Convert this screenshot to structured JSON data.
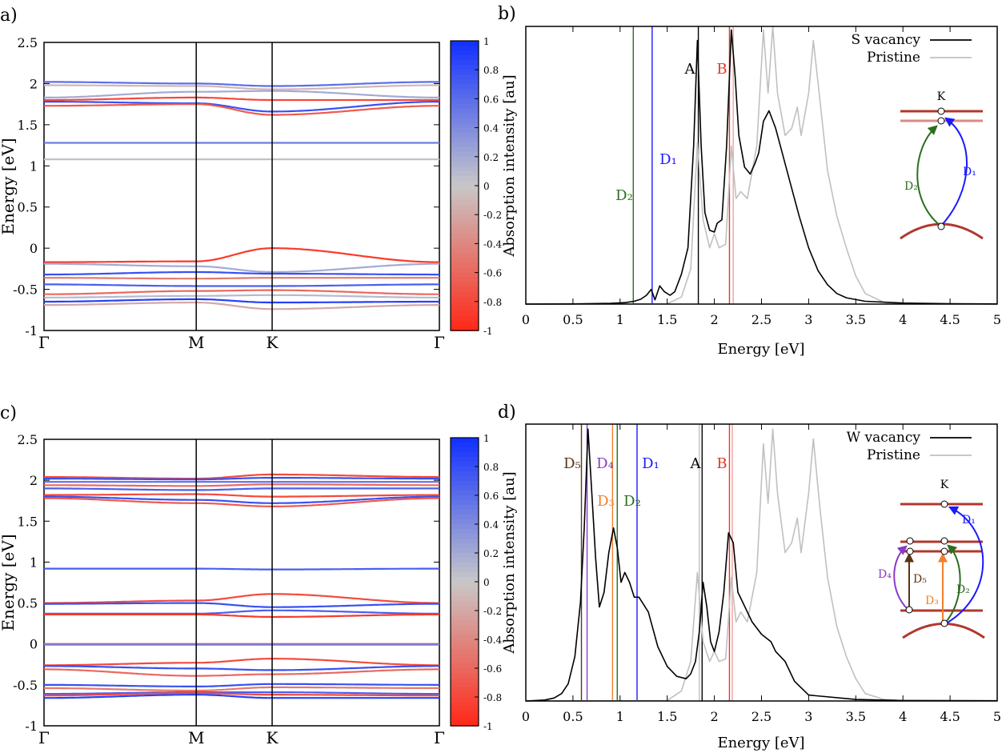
{
  "figure": {
    "colorbar_colors": {
      "neg": "#ff2a1a",
      "mid": "#c8c8c8",
      "pos": "#1432ff"
    },
    "colors": {
      "red_level": "#b0382c",
      "pink_level": "#d98c84",
      "blue": "#1a1aff",
      "green": "#2b6e1e",
      "orange": "#f07f29",
      "purple": "#8a3ac6",
      "brown": "#5b3414",
      "black": "#000000",
      "gray": "#c0c0c0",
      "red_line": "#e03a2a"
    }
  },
  "chart_data": [
    {
      "panel": "a)",
      "type": "band_structure",
      "ylabel": "Energy [eV]",
      "ylim": [
        -1,
        2.5
      ],
      "yticks": [
        "2.5",
        "2",
        "1.5",
        "1",
        "0.5",
        "0",
        "-0.5",
        "-1"
      ],
      "kpoint_labels": [
        "Γ",
        "M",
        "K",
        "Γ"
      ],
      "kpoint_positions": [
        0,
        0.385,
        0.577,
        1
      ],
      "colorbar_ticks": [
        "1",
        "0.8",
        "0.6",
        "0.4",
        "0.2",
        "0",
        "-0.2",
        "-0.4",
        "-0.6",
        "-0.8",
        "-1"
      ],
      "bands": [
        {
          "e_gamma": 2.02,
          "e_m": 2.0,
          "e_k": 1.97,
          "pol": 0.6
        },
        {
          "e_gamma": 1.98,
          "e_m": 1.97,
          "e_k": 1.93,
          "pol": -0.1
        },
        {
          "e_gamma": 1.83,
          "e_m": 1.9,
          "e_k": 1.91,
          "pol": 0.2
        },
        {
          "e_gamma": 1.8,
          "e_m": 1.83,
          "e_k": 1.8,
          "pol": -0.8
        },
        {
          "e_gamma": 1.78,
          "e_m": 1.76,
          "e_k": 1.66,
          "pol": 0.8
        },
        {
          "e_gamma": 1.73,
          "e_m": 1.75,
          "e_k": 1.62,
          "pol": -0.7
        },
        {
          "e_gamma": 1.28,
          "e_m": 1.28,
          "e_k": 1.28,
          "pol": 0.5
        },
        {
          "e_gamma": 1.08,
          "e_m": 1.08,
          "e_k": 1.08,
          "pol": 0.05
        },
        {
          "e_gamma": -0.17,
          "e_m": -0.16,
          "e_k": 0.0,
          "pol": -0.9
        },
        {
          "e_gamma": -0.19,
          "e_m": -0.22,
          "e_k": -0.29,
          "pol": 0.2
        },
        {
          "e_gamma": -0.32,
          "e_m": -0.29,
          "e_k": -0.31,
          "pol": 0.8
        },
        {
          "e_gamma": -0.36,
          "e_m": -0.37,
          "e_k": -0.36,
          "pol": -0.5
        },
        {
          "e_gamma": -0.44,
          "e_m": -0.46,
          "e_k": -0.46,
          "pol": 0.7
        },
        {
          "e_gamma": -0.56,
          "e_m": -0.52,
          "e_k": -0.51,
          "pol": -0.6
        },
        {
          "e_gamma": -0.6,
          "e_m": -0.58,
          "e_k": -0.57,
          "pol": 0.1
        },
        {
          "e_gamma": -0.65,
          "e_m": -0.62,
          "e_k": -0.66,
          "pol": 0.9
        },
        {
          "e_gamma": -0.69,
          "e_m": -0.66,
          "e_k": -0.74,
          "pol": -0.2
        }
      ]
    },
    {
      "panel": "b)",
      "type": "line",
      "xlabel": "Energy [eV]",
      "ylabel": "Absorption intensity [au]",
      "xlim": [
        0,
        5
      ],
      "xticks": [
        "0",
        "0.5",
        "1",
        "1.5",
        "2",
        "2.5",
        "3",
        "3.5",
        "4",
        "4.5",
        "5"
      ],
      "series": [
        {
          "name": "S vacancy",
          "color": "#000000",
          "x": [
            0,
            0.5,
            0.9,
            1.05,
            1.15,
            1.22,
            1.28,
            1.33,
            1.37,
            1.42,
            1.47,
            1.53,
            1.58,
            1.65,
            1.72,
            1.78,
            1.82,
            1.86,
            1.9,
            1.95,
            2.0,
            2.03,
            2.08,
            2.13,
            2.18,
            2.22,
            2.26,
            2.32,
            2.38,
            2.43,
            2.47,
            2.52,
            2.58,
            2.65,
            2.72,
            2.8,
            2.9,
            3.0,
            3.1,
            3.2,
            3.3,
            3.4,
            3.6,
            4.0,
            4.5,
            5.0
          ],
          "y": [
            0,
            0.004,
            0.02,
            0.04,
            0.08,
            0.14,
            0.25,
            0.42,
            0.12,
            0.52,
            0.35,
            0.25,
            0.35,
            0.85,
            1.6,
            4.5,
            7.5,
            4.5,
            2.6,
            2.1,
            2.05,
            2.3,
            2.4,
            4.5,
            7.8,
            6.5,
            4.8,
            3.9,
            3.7,
            4.0,
            4.3,
            5.2,
            5.5,
            5.0,
            4.3,
            3.5,
            2.5,
            1.6,
            0.95,
            0.55,
            0.3,
            0.18,
            0.08,
            0.03,
            0.01,
            0.005
          ]
        },
        {
          "name": "Pristine",
          "color": "#c0c0c0",
          "x": [
            0,
            1.5,
            1.65,
            1.75,
            1.82,
            1.88,
            1.95,
            2.0,
            2.05,
            2.12,
            2.18,
            2.23,
            2.28,
            2.35,
            2.45,
            2.52,
            2.57,
            2.62,
            2.67,
            2.75,
            2.82,
            2.88,
            2.92,
            3.0,
            3.05,
            3.12,
            3.2,
            3.3,
            3.4,
            3.5,
            3.6,
            3.8,
            4.0,
            4.05
          ],
          "y": [
            0,
            0.01,
            0.2,
            1.0,
            4.6,
            2.4,
            1.6,
            2.0,
            1.6,
            1.7,
            4.5,
            3.0,
            3.2,
            3.0,
            4.5,
            7.8,
            6.0,
            7.9,
            6.0,
            4.8,
            5.0,
            5.6,
            4.8,
            6.0,
            7.5,
            5.8,
            3.8,
            2.5,
            1.6,
            0.8,
            0.3,
            0.05,
            0.01,
            0.01
          ]
        }
      ],
      "vlines": [
        {
          "x": 1.14,
          "label": "D₂",
          "color": "#2b6e1e"
        },
        {
          "x": 1.34,
          "label": "D₁",
          "color": "#1a1aff"
        },
        {
          "x": 1.83,
          "label": "A",
          "color": "#000000"
        },
        {
          "x": 2.16,
          "label": "B",
          "color": "#e03a2a"
        },
        {
          "x": 2.2,
          "label": "",
          "color": "#f0a0a0"
        }
      ],
      "inset": {
        "k_label": "K",
        "transitions": [
          "D₂",
          "D₁"
        ]
      }
    },
    {
      "panel": "c)",
      "type": "band_structure",
      "ylabel": "Energy [eV]",
      "ylim": [
        -1,
        2.5
      ],
      "yticks": [
        "2.5",
        "2",
        "1.5",
        "1",
        "0.5",
        "0",
        "-0.5",
        "-1"
      ],
      "kpoint_labels": [
        "Γ",
        "M",
        "K",
        "Γ"
      ],
      "kpoint_positions": [
        0,
        0.385,
        0.577,
        1
      ],
      "colorbar_ticks": [
        "1",
        "0.8",
        "0.6",
        "0.4",
        "0.2",
        "0",
        "-0.2",
        "-0.4",
        "-0.6",
        "-0.8",
        "-1"
      ],
      "bands": [
        {
          "e_gamma": 2.04,
          "e_m": 2.02,
          "e_k": 2.07,
          "pol": -0.8
        },
        {
          "e_gamma": 2.02,
          "e_m": 2.01,
          "e_k": 2.03,
          "pol": 0.8
        },
        {
          "e_gamma": 1.98,
          "e_m": 1.98,
          "e_k": 1.98,
          "pol": 0.6
        },
        {
          "e_gamma": 1.94,
          "e_m": 1.93,
          "e_k": 1.95,
          "pol": -0.6
        },
        {
          "e_gamma": 1.9,
          "e_m": 1.88,
          "e_k": 1.9,
          "pol": 0.7
        },
        {
          "e_gamma": 1.82,
          "e_m": 1.83,
          "e_k": 1.8,
          "pol": -0.8
        },
        {
          "e_gamma": 1.8,
          "e_m": 1.76,
          "e_k": 1.72,
          "pol": 0.8
        },
        {
          "e_gamma": 1.78,
          "e_m": 1.72,
          "e_k": 1.68,
          "pol": -0.7
        },
        {
          "e_gamma": 0.92,
          "e_m": 0.92,
          "e_k": 0.91,
          "pol": 0.7
        },
        {
          "e_gamma": 0.5,
          "e_m": 0.53,
          "e_k": 0.61,
          "pol": -0.8
        },
        {
          "e_gamma": 0.49,
          "e_m": 0.5,
          "e_k": 0.45,
          "pol": 0.8
        },
        {
          "e_gamma": 0.37,
          "e_m": 0.37,
          "e_k": 0.41,
          "pol": 0.7
        },
        {
          "e_gamma": 0.36,
          "e_m": 0.36,
          "e_k": 0.33,
          "pol": -0.9
        },
        {
          "e_gamma": 0.0,
          "e_m": 0.0,
          "e_k": 0.0,
          "pol": -0.7
        },
        {
          "e_gamma": -0.01,
          "e_m": -0.01,
          "e_k": -0.01,
          "pol": 0.5
        },
        {
          "e_gamma": -0.26,
          "e_m": -0.23,
          "e_k": -0.18,
          "pol": -0.8
        },
        {
          "e_gamma": -0.27,
          "e_m": -0.3,
          "e_k": -0.32,
          "pol": 0.8
        },
        {
          "e_gamma": -0.31,
          "e_m": -0.39,
          "e_k": -0.37,
          "pol": -0.6
        },
        {
          "e_gamma": -0.5,
          "e_m": -0.52,
          "e_k": -0.49,
          "pol": 0.8
        },
        {
          "e_gamma": -0.54,
          "e_m": -0.57,
          "e_k": -0.53,
          "pol": -0.5
        },
        {
          "e_gamma": -0.61,
          "e_m": -0.59,
          "e_k": -0.59,
          "pol": 0.7
        },
        {
          "e_gamma": -0.63,
          "e_m": -0.6,
          "e_k": -0.62,
          "pol": -0.8
        },
        {
          "e_gamma": -0.66,
          "e_m": -0.62,
          "e_k": -0.66,
          "pol": 0.9
        }
      ]
    },
    {
      "panel": "d)",
      "type": "line",
      "xlabel": "Energy [eV]",
      "ylabel": "Absorption intensity [au]",
      "xlim": [
        0,
        5
      ],
      "xticks": [
        "0",
        "0.5",
        "1",
        "1.5",
        "2",
        "2.5",
        "3",
        "3.5",
        "4",
        "4.5",
        "5"
      ],
      "series": [
        {
          "name": "W vacancy",
          "color": "#000000",
          "x": [
            0,
            0.2,
            0.3,
            0.38,
            0.45,
            0.52,
            0.58,
            0.62,
            0.66,
            0.7,
            0.74,
            0.78,
            0.83,
            0.88,
            0.93,
            0.97,
            1.01,
            1.05,
            1.1,
            1.15,
            1.2,
            1.3,
            1.4,
            1.5,
            1.6,
            1.7,
            1.75,
            1.8,
            1.84,
            1.88,
            1.92,
            1.96,
            2.0,
            2.05,
            2.1,
            2.15,
            2.2,
            2.25,
            2.3,
            2.4,
            2.5,
            2.6,
            2.65,
            2.75,
            2.85,
            3.0,
            3.5,
            4.0,
            5.0
          ],
          "y": [
            0.0,
            0.02,
            0.06,
            0.15,
            0.35,
            0.9,
            2.0,
            3.5,
            5.5,
            4.2,
            2.9,
            1.9,
            2.2,
            3.0,
            3.5,
            3.1,
            2.4,
            2.6,
            2.4,
            2.1,
            2.1,
            1.8,
            1.1,
            0.7,
            0.5,
            0.45,
            0.55,
            0.8,
            1.4,
            2.4,
            1.9,
            1.2,
            1.0,
            1.4,
            2.2,
            3.4,
            3.2,
            2.2,
            2.0,
            1.6,
            1.35,
            1.2,
            1.0,
            0.8,
            0.4,
            0.12,
            0.03,
            0.01,
            0.005
          ]
        },
        {
          "name": "Pristine",
          "color": "#c0c0c0",
          "x": [
            0,
            1.5,
            1.65,
            1.75,
            1.82,
            1.88,
            1.95,
            2.0,
            2.05,
            2.12,
            2.18,
            2.23,
            2.28,
            2.35,
            2.45,
            2.52,
            2.57,
            2.62,
            2.67,
            2.75,
            2.82,
            2.88,
            2.92,
            3.0,
            3.05,
            3.12,
            3.2,
            3.3,
            3.4,
            3.5,
            3.6,
            3.8,
            4.0,
            4.05
          ],
          "y": [
            0,
            0.01,
            0.2,
            0.8,
            2.6,
            1.2,
            0.8,
            1.0,
            0.8,
            0.85,
            2.5,
            1.6,
            1.8,
            1.6,
            2.6,
            5.2,
            4.0,
            5.5,
            4.2,
            3.0,
            3.2,
            3.7,
            3.0,
            4.2,
            5.3,
            3.9,
            2.5,
            1.5,
            0.9,
            0.45,
            0.15,
            0.03,
            0.005,
            0.005
          ]
        }
      ],
      "vlines": [
        {
          "x": 0.59,
          "label": "D₅",
          "color": "#5b3414"
        },
        {
          "x": 0.65,
          "label": "D₄",
          "color": "#8a3ac6"
        },
        {
          "x": 0.92,
          "label": "D₃",
          "color": "#f07f29"
        },
        {
          "x": 0.97,
          "label": "D₂",
          "color": "#2b6e1e"
        },
        {
          "x": 1.18,
          "label": "D₁",
          "color": "#1a1aff"
        },
        {
          "x": 1.84,
          "label": "",
          "color": "#c0c0c0"
        },
        {
          "x": 1.87,
          "label": "A",
          "color": "#000000"
        },
        {
          "x": 2.16,
          "label": "B",
          "color": "#e03a2a"
        },
        {
          "x": 2.19,
          "label": "",
          "color": "#f0a0a0"
        }
      ],
      "inset": {
        "k_label": "K",
        "transitions": [
          "D₁",
          "D₂",
          "D₃",
          "D₄",
          "D₅"
        ]
      }
    }
  ]
}
